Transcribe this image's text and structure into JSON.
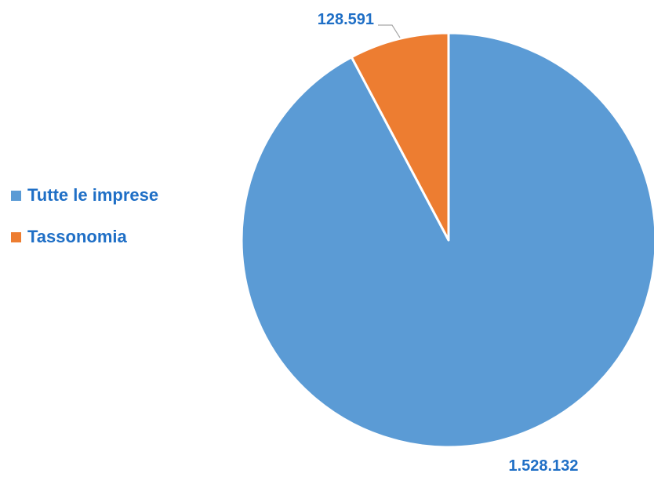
{
  "chart_data": {
    "type": "pie",
    "categories": [
      "Tutte le imprese",
      "Tassonomia"
    ],
    "values": [
      1528132,
      128591
    ],
    "value_labels": [
      "1.528.132",
      "128.591"
    ],
    "colors": [
      "#5B9BD5",
      "#ED7D31"
    ],
    "legend_position": "left",
    "title": ""
  },
  "legend": {
    "items": [
      {
        "label": "Tutte le imprese",
        "color": "#5B9BD5"
      },
      {
        "label": "Tassonomia",
        "color": "#ED7D31"
      }
    ]
  }
}
